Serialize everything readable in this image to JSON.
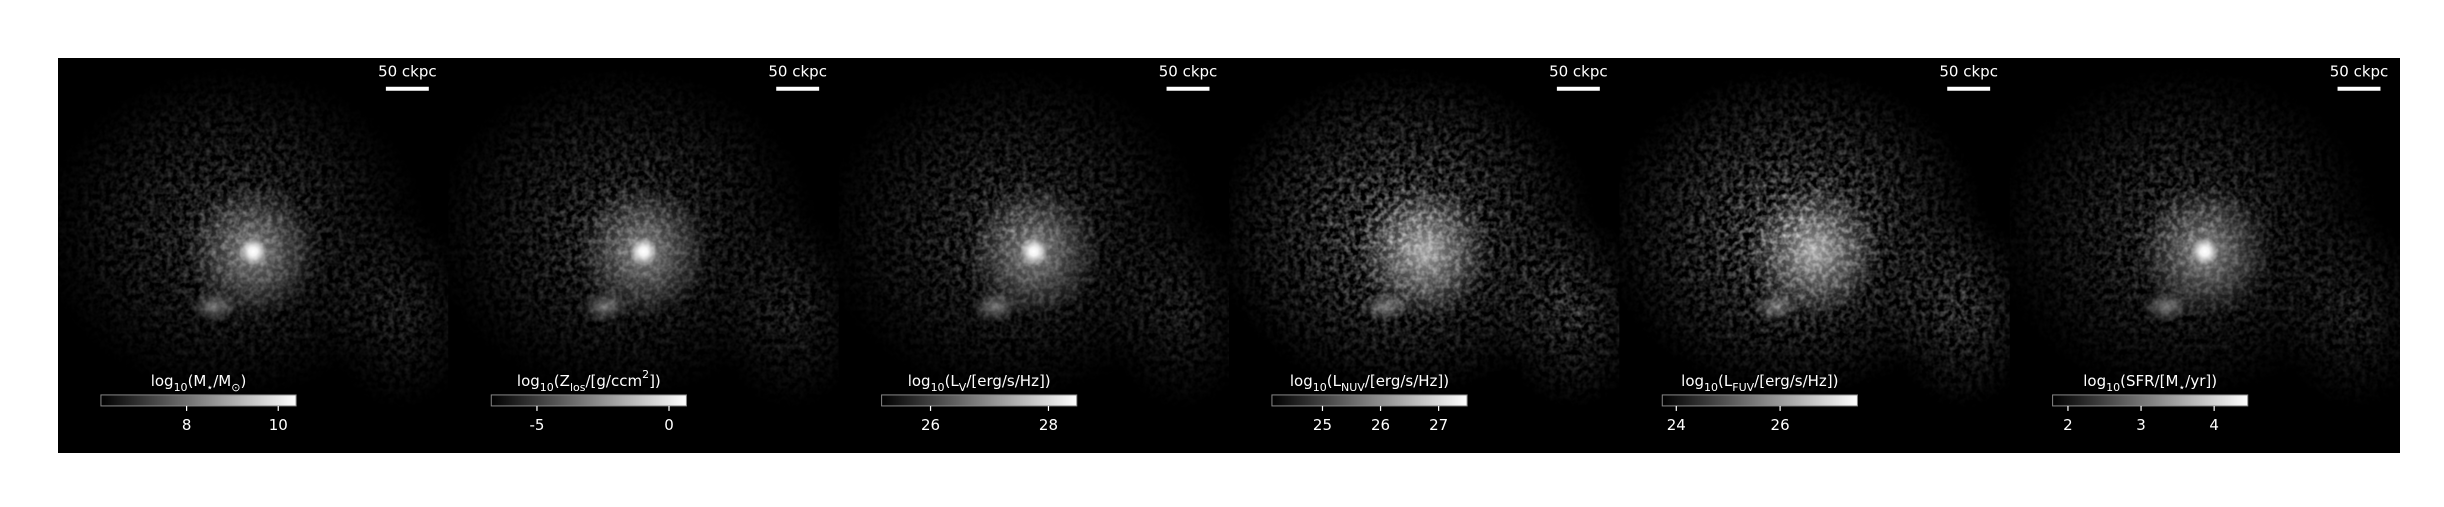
{
  "chart_data": {
    "type": "image-grid",
    "panels": [
      {
        "scale_label": "50 ckpc",
        "colorbar_label": [
          {
            "text": "log"
          },
          {
            "text": "10",
            "shift": "sub"
          },
          {
            "text": "(M"
          },
          {
            "text": "⋆",
            "shift": "sub"
          },
          {
            "text": "/M"
          },
          {
            "text": "⊙",
            "shift": "sub"
          },
          {
            "text": ")"
          }
        ],
        "clim": [
          6.13,
          10.39
        ],
        "cticks": [
          8,
          10
        ],
        "core": true
      },
      {
        "scale_label": "50 ckpc",
        "colorbar_label": [
          {
            "text": "log"
          },
          {
            "text": "10",
            "shift": "sub"
          },
          {
            "text": "(Z"
          },
          {
            "text": "los",
            "shift": "sub"
          },
          {
            "text": "/[g/ccm"
          },
          {
            "text": "2",
            "shift": "super"
          },
          {
            "text": "])"
          }
        ],
        "clim": [
          -6.73,
          0.66
        ],
        "cticks": [
          -5,
          0
        ],
        "core": true
      },
      {
        "scale_label": "50 ckpc",
        "colorbar_label": [
          {
            "text": "log"
          },
          {
            "text": "10",
            "shift": "sub"
          },
          {
            "text": "(L"
          },
          {
            "text": "V",
            "shift": "sub"
          },
          {
            "text": "/[erg/s/Hz])"
          }
        ],
        "clim": [
          25.17,
          28.48
        ],
        "cticks": [
          26,
          28
        ],
        "core": true
      },
      {
        "scale_label": "50 ckpc",
        "colorbar_label": [
          {
            "text": "log"
          },
          {
            "text": "10",
            "shift": "sub"
          },
          {
            "text": "(L"
          },
          {
            "text": "NUV",
            "shift": "sub"
          },
          {
            "text": "/[erg/s/Hz])"
          }
        ],
        "clim": [
          24.13,
          27.49
        ],
        "cticks": [
          25,
          26,
          27
        ],
        "core": false
      },
      {
        "scale_label": "50 ckpc",
        "colorbar_label": [
          {
            "text": "log"
          },
          {
            "text": "10",
            "shift": "sub"
          },
          {
            "text": "(L"
          },
          {
            "text": "FUV",
            "shift": "sub"
          },
          {
            "text": "/[erg/s/Hz])"
          }
        ],
        "clim": [
          23.73,
          27.49
        ],
        "cticks": [
          24,
          26
        ],
        "core": false
      },
      {
        "scale_label": "50 ckpc",
        "colorbar_label": [
          {
            "text": "log"
          },
          {
            "text": "10",
            "shift": "sub"
          },
          {
            "text": "(SFR/[M"
          },
          {
            "text": "⋆",
            "shift": "sub"
          },
          {
            "text": "/yr])"
          }
        ],
        "clim": [
          1.79,
          4.46
        ],
        "cticks": [
          2,
          3,
          4
        ],
        "core": true
      }
    ]
  }
}
